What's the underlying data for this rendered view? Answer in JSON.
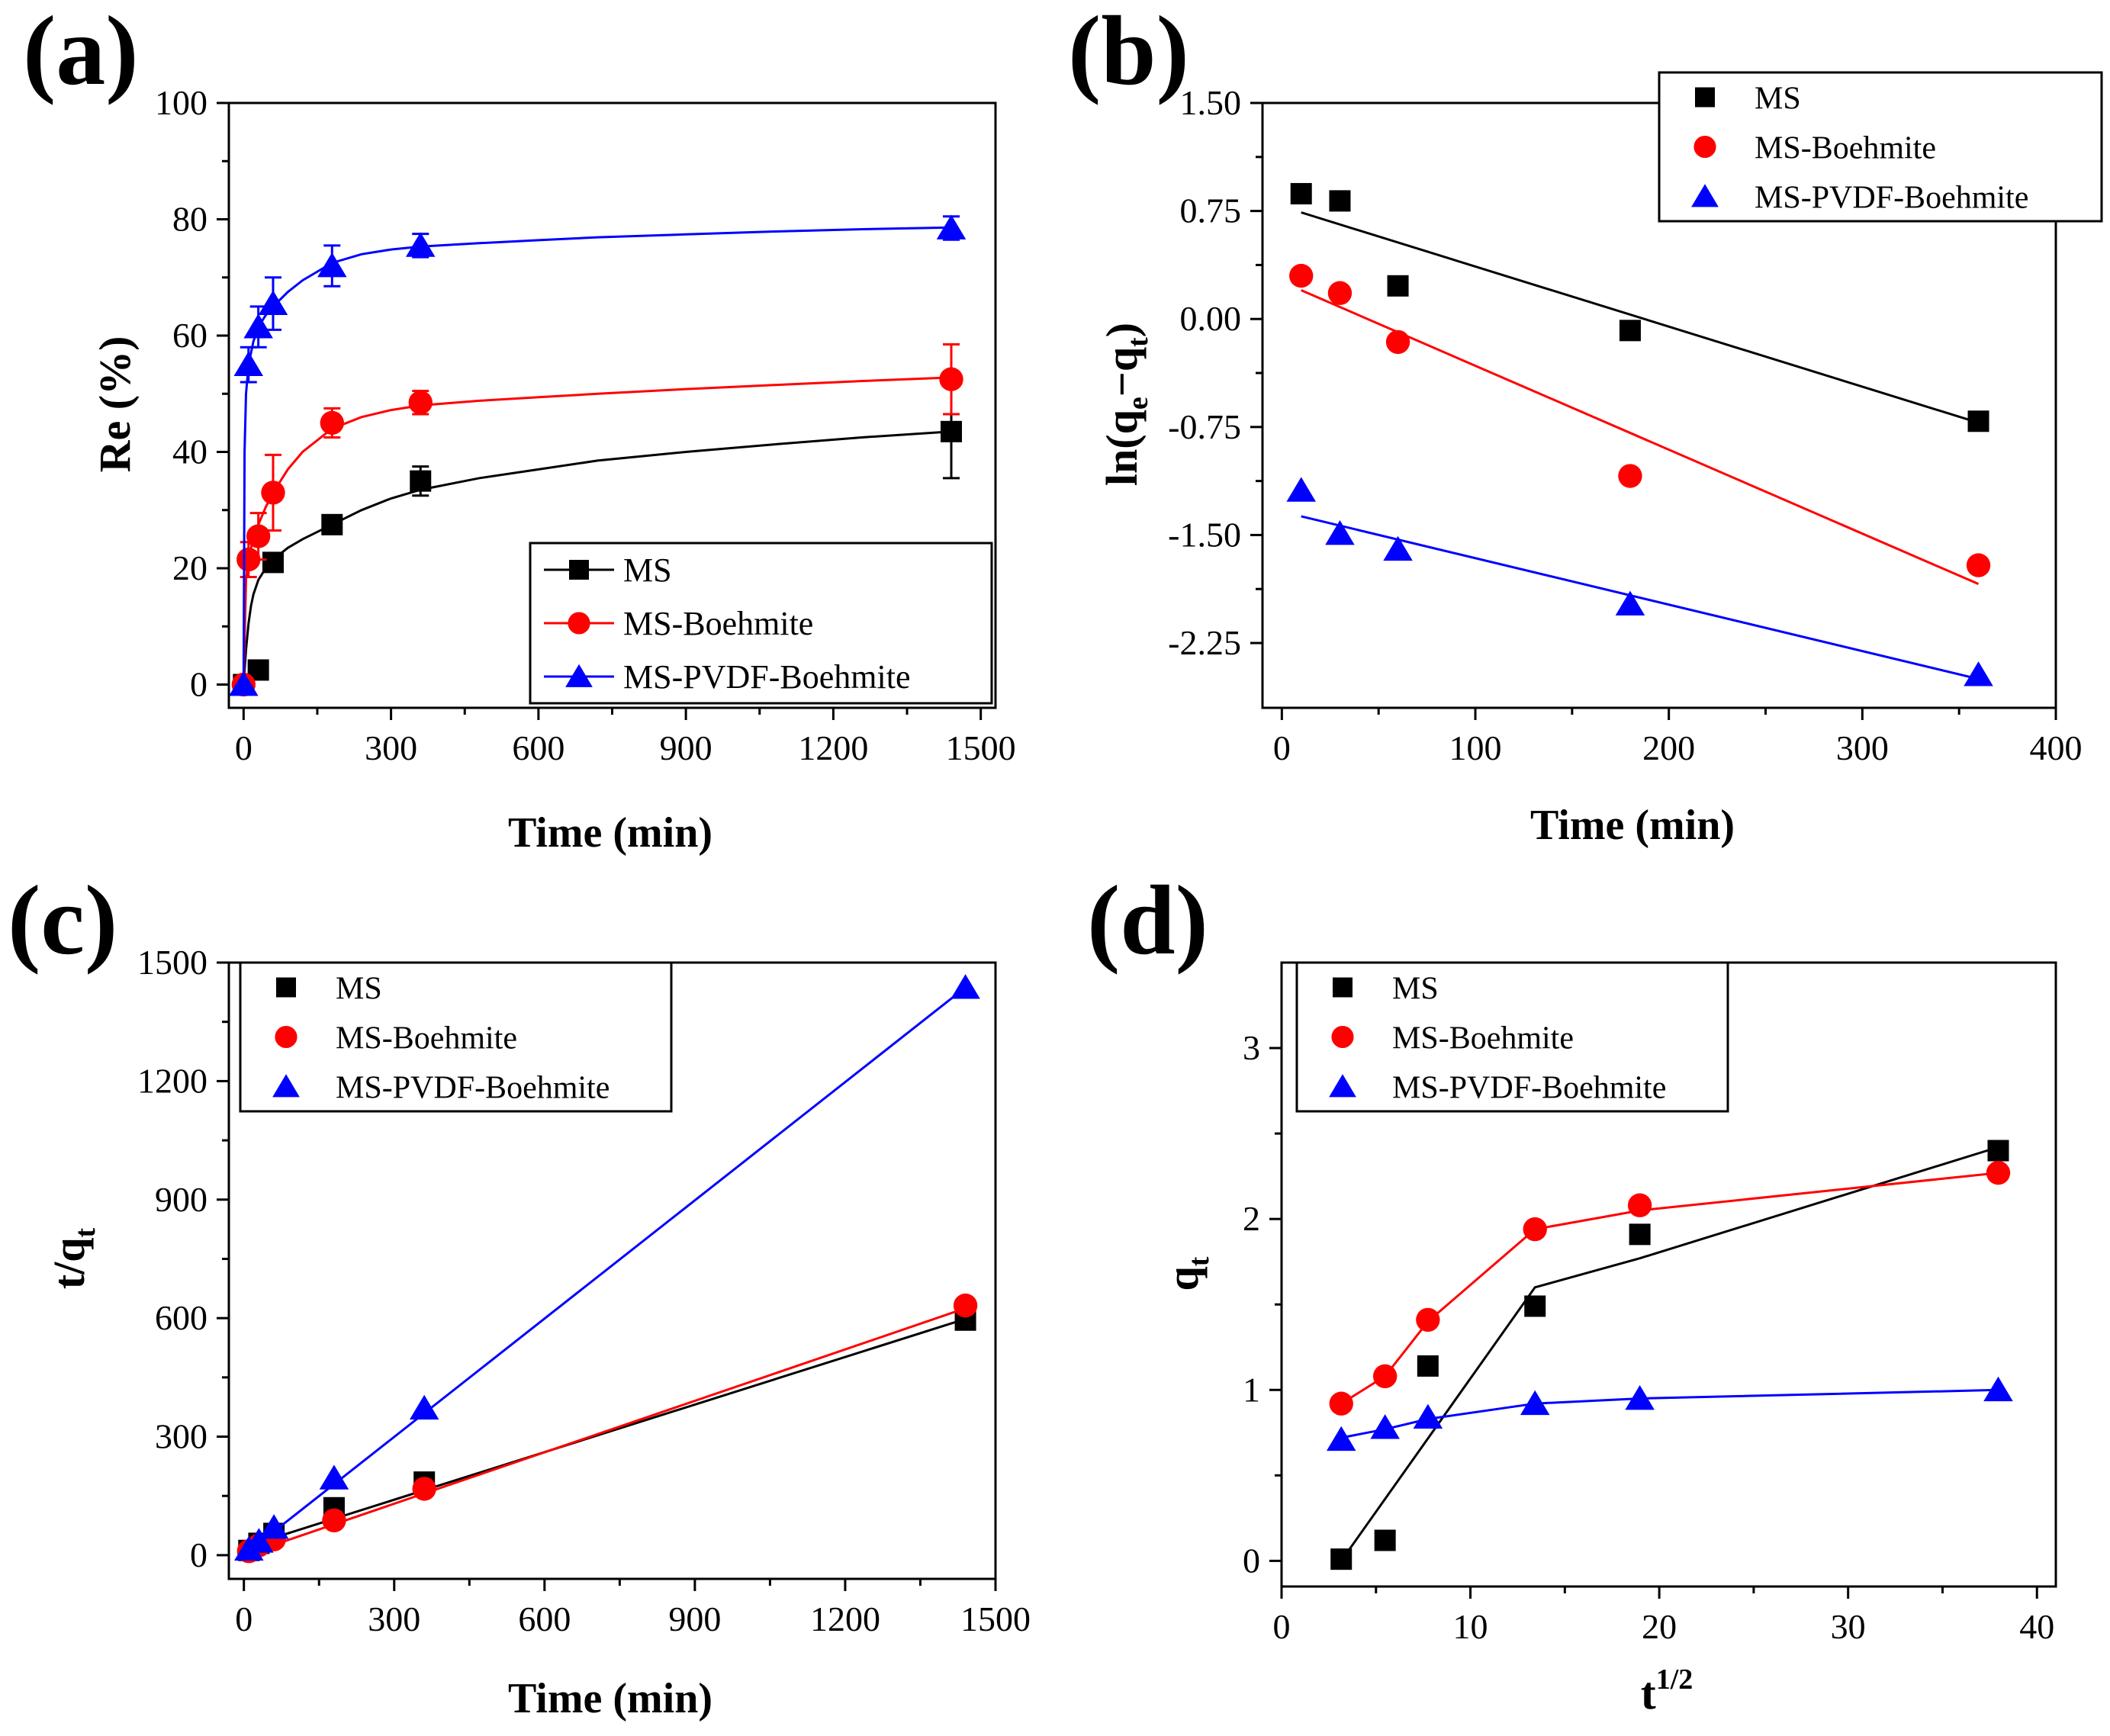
{
  "figure": {
    "colors": {
      "MS": "#000000",
      "MS-Boehmite": "#ff0000",
      "MS-PVDF-Boehmite": "#0000ff"
    }
  },
  "chart_data": [
    {
      "panel_label": "(a)",
      "type": "scatter",
      "xlabel": "Time (min)",
      "ylabel": "Re (%)",
      "xlim": [
        -30,
        1530
      ],
      "ylim": [
        -4,
        100
      ],
      "xticks": [
        0,
        300,
        600,
        900,
        1200,
        1500
      ],
      "yticks": [
        0,
        20,
        40,
        60,
        80,
        100
      ],
      "xtick_labels": [
        "0",
        "300",
        "600",
        "900",
        "1200",
        "1500"
      ],
      "ytick_labels": [
        "0",
        "20",
        "40",
        "60",
        "80",
        "100"
      ],
      "legend": {
        "position": "lower-right",
        "framed": true,
        "line_in_legend": true
      },
      "series": [
        {
          "name": "MS",
          "marker": "square",
          "color": "#000000",
          "x": [
            0,
            30,
            60,
            180,
            360,
            1440
          ],
          "y": [
            0,
            2.5,
            21,
            27.5,
            35,
            43.5
          ],
          "err": [
            0,
            0,
            1.5,
            1.5,
            2.5,
            8
          ],
          "fit": {
            "x": [
              0,
              5,
              10,
              15,
              20,
              30,
              45,
              60,
              90,
              120,
              180,
              240,
              300,
              360,
              480,
              600,
              720,
              900,
              1080,
              1260,
              1440
            ],
            "y": [
              0,
              6,
              10.5,
              13.5,
              15.5,
              18,
              20,
              21.5,
              23.5,
              25,
              27.5,
              30,
              32,
              33.5,
              35.5,
              37,
              38.5,
              40,
              41.3,
              42.5,
              43.5
            ]
          }
        },
        {
          "name": "MS-Boehmite",
          "marker": "circle",
          "color": "#ff0000",
          "x": [
            0,
            10,
            30,
            60,
            180,
            360,
            1440
          ],
          "y": [
            0,
            21.5,
            25.5,
            33,
            45,
            48.5,
            52.5
          ],
          "err": [
            0,
            3,
            4,
            6.5,
            2.5,
            2,
            6
          ],
          "fit": {
            "x": [
              0,
              5,
              10,
              20,
              30,
              45,
              60,
              90,
              120,
              180,
              240,
              300,
              360,
              480,
              600,
              720,
              900,
              1080,
              1260,
              1440
            ],
            "y": [
              0,
              18,
              22,
              25,
              27.5,
              30.5,
              33,
              37,
              40,
              44,
              46,
              47.2,
              48,
              48.8,
              49.4,
              50,
              50.8,
              51.5,
              52.2,
              52.8
            ]
          }
        },
        {
          "name": "MS-PVDF-Boehmite",
          "marker": "triangle",
          "color": "#0000ff",
          "x": [
            0,
            10,
            30,
            60,
            180,
            360,
            1440
          ],
          "y": [
            0,
            55,
            61.5,
            65.5,
            72,
            75.5,
            78.5
          ],
          "err": [
            0,
            3,
            3.5,
            4.5,
            3.5,
            2,
            2
          ],
          "fit": {
            "x": [
              0,
              2,
              5,
              10,
              20,
              30,
              45,
              60,
              90,
              120,
              180,
              240,
              300,
              360,
              480,
              600,
              720,
              900,
              1080,
              1260,
              1440
            ],
            "y": [
              0,
              40,
              50,
              55,
              59,
              61.5,
              63.5,
              65,
              67.5,
              69.5,
              72.5,
              74,
              74.8,
              75.3,
              75.9,
              76.4,
              76.9,
              77.4,
              77.9,
              78.3,
              78.6
            ]
          }
        }
      ]
    },
    {
      "panel_label": "(b)",
      "type": "scatter",
      "xlabel": "Time (min)",
      "ylabel": "ln(qe−qt)",
      "ylabel_parts": {
        "pre": "ln(q",
        "sub1": "e",
        "mid": "−q",
        "sub2": "t",
        "post": ")"
      },
      "xlim": [
        -10,
        400
      ],
      "ylim": [
        -2.7,
        1.5
      ],
      "xticks": [
        0,
        100,
        200,
        300,
        400
      ],
      "yticks": [
        1.5,
        0.75,
        0,
        -0.75,
        -1.5,
        -2.25
      ],
      "xtick_labels": [
        "0",
        "100",
        "200",
        "300",
        "400"
      ],
      "ytick_labels": [
        "1.50",
        "0.75",
        "0.00",
        "-0.75",
        "-1.50",
        "-2.25"
      ],
      "legend": {
        "position": "top-right",
        "framed": true,
        "line_in_legend": false
      },
      "series": [
        {
          "name": "MS",
          "marker": "square",
          "color": "#000000",
          "x": [
            10,
            30,
            60,
            180,
            360
          ],
          "y": [
            0.87,
            0.82,
            0.23,
            -0.08,
            -0.71
          ],
          "fit": {
            "x": [
              10,
              360
            ],
            "y": [
              0.74,
              -0.72
            ]
          }
        },
        {
          "name": "MS-Boehmite",
          "marker": "circle",
          "color": "#ff0000",
          "x": [
            10,
            30,
            60,
            180,
            360
          ],
          "y": [
            0.3,
            0.18,
            -0.16,
            -1.09,
            -1.71
          ],
          "fit": {
            "x": [
              10,
              360
            ],
            "y": [
              0.2,
              -1.84
            ]
          }
        },
        {
          "name": "MS-PVDF-Boehmite",
          "marker": "triangle",
          "color": "#0000ff",
          "x": [
            10,
            30,
            60,
            180,
            360
          ],
          "y": [
            -1.19,
            -1.49,
            -1.6,
            -1.98,
            -2.47
          ],
          "fit": {
            "x": [
              10,
              360
            ],
            "y": [
              -1.37,
              -2.5
            ]
          }
        }
      ]
    },
    {
      "panel_label": "(c)",
      "type": "scatter",
      "xlabel": "Time (min)",
      "ylabel": "t/qt",
      "ylabel_parts": {
        "pre": "t/q",
        "sub1": "t"
      },
      "xlim": [
        -30,
        1500
      ],
      "ylim": [
        -60,
        1500
      ],
      "xticks": [
        0,
        300,
        600,
        900,
        1200,
        1500
      ],
      "yticks": [
        0,
        300,
        600,
        900,
        1200,
        1500
      ],
      "xtick_labels": [
        "0",
        "300",
        "600",
        "900",
        "1200",
        "1500"
      ],
      "ytick_labels": [
        "0",
        "300",
        "600",
        "900",
        "1200",
        "1500"
      ],
      "legend": {
        "position": "top-left",
        "framed": true,
        "line_in_legend": false
      },
      "series": [
        {
          "name": "MS",
          "marker": "square",
          "color": "#000000",
          "x": [
            10,
            30,
            60,
            180,
            360,
            1440
          ],
          "y": [
            12,
            30,
            55,
            120,
            185,
            595
          ],
          "fit": {
            "x": [
              0,
              1440
            ],
            "y": [
              20,
              598
            ]
          }
        },
        {
          "name": "MS-Boehmite",
          "marker": "circle",
          "color": "#ff0000",
          "x": [
            10,
            30,
            60,
            180,
            360,
            1440
          ],
          "y": [
            10,
            25,
            40,
            88,
            168,
            632
          ],
          "fit": {
            "x": [
              0,
              1440
            ],
            "y": [
              0,
              625
            ]
          }
        },
        {
          "name": "MS-PVDF-Boehmite",
          "marker": "triangle",
          "color": "#0000ff",
          "x": [
            10,
            30,
            60,
            180,
            360,
            1440
          ],
          "y": [
            15,
            35,
            70,
            195,
            372,
            1437
          ],
          "fit": {
            "x": [
              0,
              1440
            ],
            "y": [
              0,
              1437
            ]
          }
        }
      ]
    },
    {
      "panel_label": "(d)",
      "type": "scatter",
      "xlabel": "t1/2",
      "xlabel_parts": {
        "pre": "t",
        "sup": "1/2"
      },
      "ylabel": "qt",
      "ylabel_parts": {
        "pre": "q",
        "sub1": "t"
      },
      "xlim": [
        0,
        41
      ],
      "ylim": [
        -0.15,
        3.5
      ],
      "xticks": [
        0,
        10,
        20,
        30,
        40
      ],
      "yticks": [
        0,
        1,
        2,
        3
      ],
      "xtick_labels": [
        "0",
        "10",
        "20",
        "30",
        "40"
      ],
      "ytick_labels": [
        "0",
        "1",
        "2",
        "3"
      ],
      "legend": {
        "position": "top-left",
        "framed": true,
        "line_in_legend": false
      },
      "series": [
        {
          "name": "MS",
          "marker": "square",
          "color": "#000000",
          "x": [
            3.16,
            5.48,
            7.75,
            13.42,
            18.97,
            37.95
          ],
          "y": [
            0.01,
            0.12,
            1.14,
            1.49,
            1.91,
            2.4
          ],
          "fit": {
            "x": [
              3.16,
              13.42,
              18.97,
              37.95
            ],
            "y": [
              0,
              1.6,
              1.77,
              2.42
            ]
          }
        },
        {
          "name": "MS-Boehmite",
          "marker": "circle",
          "color": "#ff0000",
          "x": [
            3.16,
            5.48,
            7.75,
            13.42,
            18.97,
            37.95
          ],
          "y": [
            0.92,
            1.08,
            1.41,
            1.94,
            2.08,
            2.27
          ],
          "fit": {
            "x": [
              3.16,
              5.48,
              7.75,
              13.42,
              18.97,
              37.95
            ],
            "y": [
              0.92,
              1.08,
              1.4,
              1.94,
              2.05,
              2.27
            ]
          }
        },
        {
          "name": "MS-PVDF-Boehmite",
          "marker": "triangle",
          "color": "#0000ff",
          "x": [
            3.16,
            5.48,
            7.75,
            13.42,
            18.97,
            37.95
          ],
          "y": [
            0.71,
            0.78,
            0.84,
            0.92,
            0.95,
            1.0
          ],
          "fit": {
            "x": [
              3.16,
              5.48,
              7.75,
              13.42,
              18.97,
              37.95
            ],
            "y": [
              0.72,
              0.77,
              0.83,
              0.92,
              0.95,
              1.0
            ]
          }
        }
      ]
    }
  ]
}
